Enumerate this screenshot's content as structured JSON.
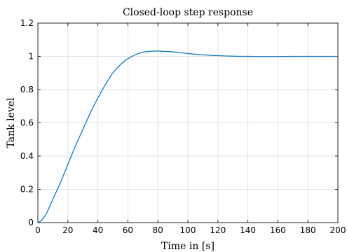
{
  "chart_data": {
    "type": "line",
    "title": "Closed-loop step response",
    "xlabel": "Time in [s]",
    "ylabel": "Tank level",
    "xlim": [
      0,
      200
    ],
    "ylim": [
      0,
      1.2
    ],
    "xticks": [
      0,
      20,
      40,
      60,
      80,
      100,
      120,
      140,
      160,
      180,
      200
    ],
    "yticks": [
      0,
      0.2,
      0.4,
      0.6,
      0.8,
      1,
      1.2
    ],
    "xtick_labels": [
      "0",
      "20",
      "40",
      "60",
      "80",
      "100",
      "120",
      "140",
      "160",
      "180",
      "200"
    ],
    "ytick_labels": [
      "0",
      "0.2",
      "0.4",
      "0.6",
      "0.8",
      "1",
      "1.2"
    ],
    "grid": true,
    "series": [
      {
        "color": "#0072bd",
        "x": [
          0,
          2,
          4,
          6,
          8,
          10,
          15,
          20,
          25,
          30,
          35,
          40,
          45,
          50,
          55,
          60,
          65,
          70,
          75,
          80,
          85,
          90,
          95,
          100,
          110,
          120,
          130,
          140,
          150,
          160,
          170,
          180,
          190,
          200
        ],
        "y": [
          0,
          0.01,
          0.03,
          0.06,
          0.1,
          0.14,
          0.24,
          0.35,
          0.46,
          0.56,
          0.66,
          0.75,
          0.83,
          0.9,
          0.95,
          0.985,
          1.01,
          1.025,
          1.03,
          1.032,
          1.03,
          1.027,
          1.022,
          1.017,
          1.009,
          1.004,
          1.001,
          1.0,
          0.999,
          0.999,
          1.0,
          1.0,
          1.0,
          1.0
        ]
      }
    ]
  }
}
